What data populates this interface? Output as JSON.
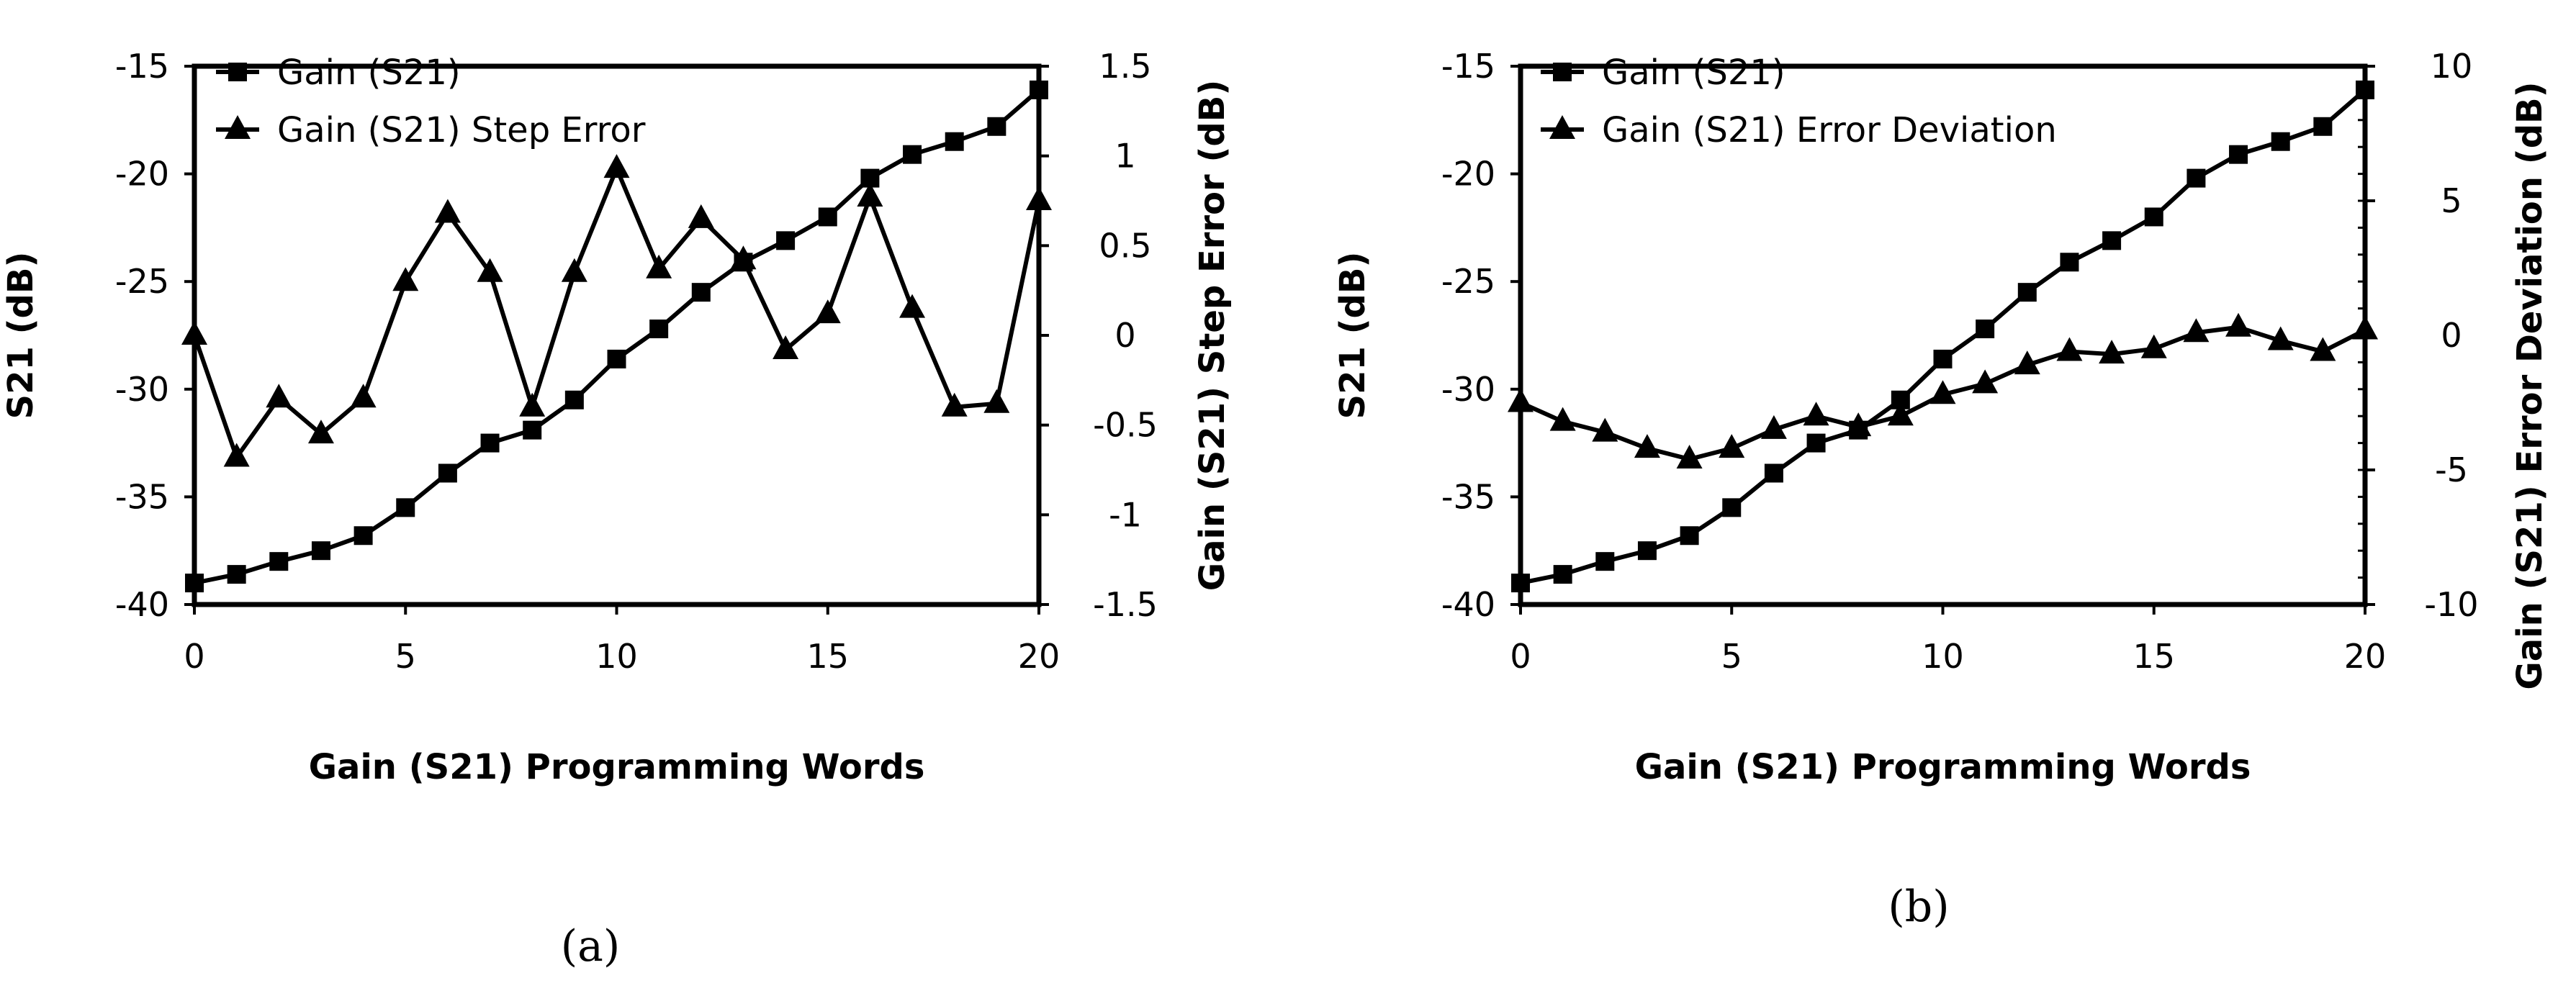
{
  "chart_data": [
    {
      "type": "line",
      "panel_label": "(a)",
      "xlabel": "Gain (S21) Programming Words",
      "ylabel": "S21 (dB)",
      "y2label": "Gain (S21) Step Error  (dB)",
      "xlim": [
        0,
        20
      ],
      "xticks": [
        "0",
        "5",
        "10",
        "15",
        "20"
      ],
      "ylim": [
        -40,
        -15
      ],
      "yticks": [
        "-40",
        "-35",
        "-30",
        "-25",
        "-20",
        "-15"
      ],
      "y2lim": [
        -1.5,
        1.5
      ],
      "y2ticks": [
        "-1.5",
        "-1",
        "-0.5",
        "0",
        "0.5",
        "1",
        "1.5"
      ],
      "grid": false,
      "legend_position": "top-left",
      "x": [
        0,
        1,
        2,
        3,
        4,
        5,
        6,
        7,
        8,
        9,
        10,
        11,
        12,
        13,
        14,
        15,
        16,
        17,
        18,
        19,
        20
      ],
      "series": [
        {
          "name": "Gain (S21)",
          "marker": "square",
          "axis": "left",
          "values": [
            -39.0,
            -38.6,
            -38.0,
            -37.5,
            -36.8,
            -35.5,
            -33.9,
            -32.5,
            -31.9,
            -30.5,
            -28.6,
            -27.2,
            -25.5,
            -24.1,
            -23.1,
            -22.0,
            -20.2,
            -19.1,
            -18.5,
            -17.8,
            -16.1
          ]
        },
        {
          "name": "Gain (S21) Step Error",
          "marker": "triangle",
          "axis": "right",
          "values": [
            0.0,
            -0.68,
            -0.35,
            -0.55,
            -0.35,
            0.3,
            0.68,
            0.35,
            -0.4,
            0.35,
            0.93,
            0.37,
            0.65,
            0.42,
            -0.08,
            0.12,
            0.77,
            0.15,
            -0.4,
            -0.38,
            0.75
          ]
        }
      ]
    },
    {
      "type": "line",
      "panel_label": "(b)",
      "xlabel": "Gain (S21) Programming Words",
      "ylabel": "S21 (dB)",
      "y2label": "Gain (S21) Error  Deviation  (dB)",
      "xlim": [
        0,
        20
      ],
      "xticks": [
        "0",
        "5",
        "10",
        "15",
        "20"
      ],
      "ylim": [
        -40,
        -15
      ],
      "yticks": [
        "-40",
        "-35",
        "-30",
        "-25",
        "-20",
        "-15"
      ],
      "y2lim": [
        -10,
        10
      ],
      "y2ticks": [
        "-10",
        "-5",
        "0",
        "5",
        "10"
      ],
      "grid": false,
      "legend_position": "top-left",
      "x": [
        0,
        1,
        2,
        3,
        4,
        5,
        6,
        7,
        8,
        9,
        10,
        11,
        12,
        13,
        14,
        15,
        16,
        17,
        18,
        19,
        20
      ],
      "series": [
        {
          "name": "Gain (S21)",
          "marker": "square",
          "axis": "left",
          "values": [
            -39.0,
            -38.6,
            -38.0,
            -37.5,
            -36.8,
            -35.5,
            -33.9,
            -32.5,
            -31.9,
            -30.5,
            -28.6,
            -27.2,
            -25.5,
            -24.1,
            -23.1,
            -22.0,
            -20.2,
            -19.1,
            -18.5,
            -17.8,
            -16.1
          ]
        },
        {
          "name": "Gain (S21) Error Deviation",
          "marker": "triangle",
          "axis": "right",
          "values": [
            -2.5,
            -3.2,
            -3.6,
            -4.2,
            -4.6,
            -4.2,
            -3.5,
            -3.0,
            -3.4,
            -3.0,
            -2.2,
            -1.8,
            -1.1,
            -0.6,
            -0.7,
            -0.5,
            0.1,
            0.3,
            -0.2,
            -0.6,
            0.2
          ]
        }
      ]
    }
  ]
}
